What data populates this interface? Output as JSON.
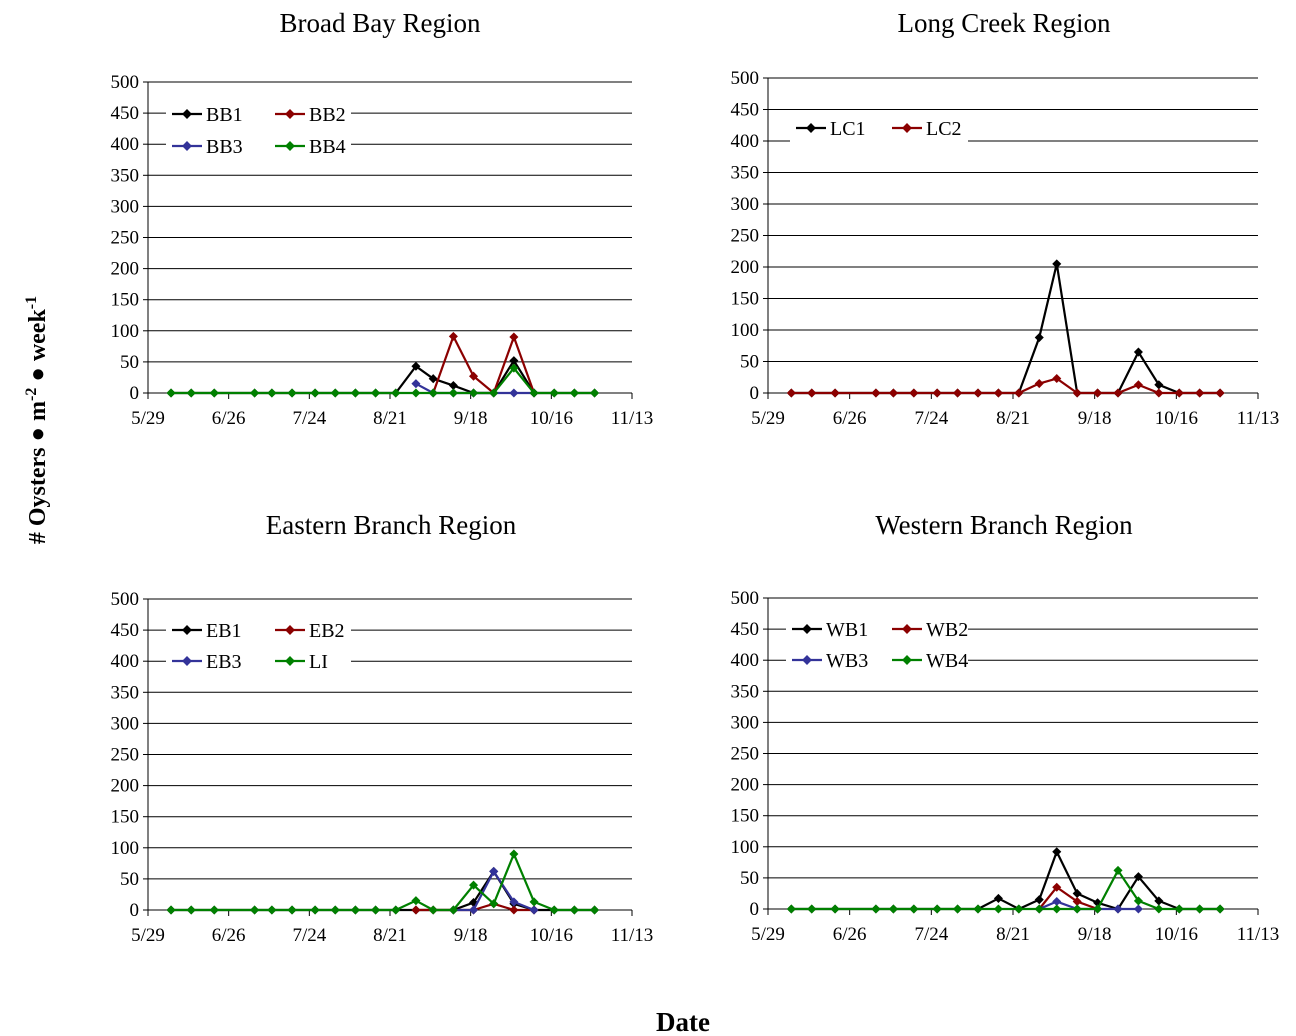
{
  "figure": {
    "ylabel": "# Oysters ● m⁻² ● week⁻¹",
    "xlabel": "Date"
  },
  "chart_data": [
    {
      "type": "line",
      "title": "Broad Bay Region",
      "x_ticks": [
        "5/29",
        "6/26",
        "7/24",
        "8/21",
        "9/18",
        "10/16",
        "11/13"
      ],
      "y_ticks": [
        0,
        50,
        100,
        150,
        200,
        250,
        300,
        350,
        400,
        450,
        500
      ],
      "ylim": [
        0,
        500
      ],
      "grid": "horizontal",
      "legend_position": "top-left",
      "series": [
        {
          "name": "BB1",
          "color": "#000000",
          "x": [
            "6/6",
            "6/13",
            "6/21",
            "7/5",
            "7/11",
            "7/18",
            "7/26",
            "8/2",
            "8/9",
            "8/16",
            "8/23",
            "8/30",
            "9/5",
            "9/12",
            "9/19",
            "9/26",
            "10/3",
            "10/10",
            "10/17",
            "10/24",
            "10/31"
          ],
          "values": [
            0,
            0,
            0,
            0,
            0,
            0,
            0,
            0,
            0,
            0,
            0,
            43,
            23,
            12,
            0,
            0,
            52,
            0,
            0,
            0,
            0
          ]
        },
        {
          "name": "BB2",
          "color": "#8b0000",
          "x": [
            "9/5",
            "9/12",
            "9/19",
            "9/26",
            "10/3",
            "10/10"
          ],
          "values": [
            0,
            91,
            27,
            0,
            90,
            0
          ]
        },
        {
          "name": "BB3",
          "color": "#333399",
          "x": [
            "8/30",
            "9/5",
            "9/12",
            "9/19",
            "9/26",
            "10/3",
            "10/10"
          ],
          "values": [
            15,
            0,
            0,
            0,
            0,
            0,
            0
          ]
        },
        {
          "name": "BB4",
          "color": "#008000",
          "x": [
            "6/6",
            "6/13",
            "6/21",
            "7/5",
            "7/11",
            "7/18",
            "7/26",
            "8/2",
            "8/9",
            "8/16",
            "8/23",
            "8/30",
            "9/5",
            "9/12",
            "9/19",
            "9/26",
            "10/3",
            "10/10",
            "10/17",
            "10/24",
            "10/31"
          ],
          "values": [
            0,
            0,
            0,
            0,
            0,
            0,
            0,
            0,
            0,
            0,
            0,
            0,
            0,
            0,
            0,
            0,
            40,
            0,
            0,
            0,
            0
          ]
        }
      ]
    },
    {
      "type": "line",
      "title": "Long Creek Region",
      "x_ticks": [
        "5/29",
        "6/26",
        "7/24",
        "8/21",
        "9/18",
        "10/16",
        "11/13"
      ],
      "y_ticks": [
        0,
        50,
        100,
        150,
        200,
        250,
        300,
        350,
        400,
        450,
        500
      ],
      "ylim": [
        0,
        500
      ],
      "grid": "horizontal",
      "legend_position": "top-left",
      "series": [
        {
          "name": "LC1",
          "color": "#000000",
          "x": [
            "6/6",
            "6/13",
            "6/21",
            "7/5",
            "7/11",
            "7/18",
            "7/26",
            "8/2",
            "8/9",
            "8/16",
            "8/23",
            "8/30",
            "9/5",
            "9/12",
            "9/19",
            "9/26",
            "10/3",
            "10/10",
            "10/17",
            "10/24",
            "10/31"
          ],
          "values": [
            0,
            0,
            0,
            0,
            0,
            0,
            0,
            0,
            0,
            0,
            0,
            88,
            205,
            0,
            0,
            0,
            65,
            13,
            0,
            0,
            0
          ]
        },
        {
          "name": "LC2",
          "color": "#8b0000",
          "x": [
            "6/6",
            "6/13",
            "6/21",
            "7/5",
            "7/11",
            "7/18",
            "7/26",
            "8/2",
            "8/9",
            "8/16",
            "8/23",
            "8/30",
            "9/5",
            "9/12",
            "9/19",
            "9/26",
            "10/3",
            "10/10",
            "10/17",
            "10/24",
            "10/31"
          ],
          "values": [
            0,
            0,
            0,
            0,
            0,
            0,
            0,
            0,
            0,
            0,
            0,
            15,
            23,
            0,
            0,
            0,
            13,
            0,
            0,
            0,
            0
          ]
        }
      ]
    },
    {
      "type": "line",
      "title": "Eastern Branch Region",
      "x_ticks": [
        "5/29",
        "6/26",
        "7/24",
        "8/21",
        "9/18",
        "10/16",
        "11/13"
      ],
      "y_ticks": [
        0,
        50,
        100,
        150,
        200,
        250,
        300,
        350,
        400,
        450,
        500
      ],
      "ylim": [
        0,
        500
      ],
      "grid": "horizontal",
      "legend_position": "top-left",
      "series": [
        {
          "name": "EB1",
          "color": "#000000",
          "x": [
            "6/6",
            "6/13",
            "6/21",
            "7/5",
            "7/11",
            "7/18",
            "7/26",
            "8/2",
            "8/9",
            "8/16",
            "8/23",
            "8/30",
            "9/5",
            "9/12",
            "9/19",
            "9/26",
            "10/3",
            "10/10",
            "10/17",
            "10/24",
            "10/31"
          ],
          "values": [
            0,
            0,
            0,
            0,
            0,
            0,
            0,
            0,
            0,
            0,
            0,
            0,
            0,
            0,
            12,
            62,
            10,
            0,
            0,
            0,
            0
          ]
        },
        {
          "name": "EB2",
          "color": "#8b0000",
          "x": [
            "8/30",
            "9/5",
            "9/12",
            "9/19",
            "9/26",
            "10/3",
            "10/10"
          ],
          "values": [
            0,
            0,
            0,
            0,
            10,
            0,
            0
          ]
        },
        {
          "name": "EB3",
          "color": "#333399",
          "x": [
            "9/12",
            "9/19",
            "9/26",
            "10/3",
            "10/10"
          ],
          "values": [
            0,
            0,
            62,
            13,
            0
          ]
        },
        {
          "name": "LI",
          "color": "#008000",
          "x": [
            "6/6",
            "6/13",
            "6/21",
            "7/5",
            "7/11",
            "7/18",
            "7/26",
            "8/2",
            "8/9",
            "8/16",
            "8/23",
            "8/30",
            "9/5",
            "9/12",
            "9/19",
            "9/26",
            "10/3",
            "10/10",
            "10/17",
            "10/24",
            "10/31"
          ],
          "values": [
            0,
            0,
            0,
            0,
            0,
            0,
            0,
            0,
            0,
            0,
            0,
            15,
            0,
            0,
            40,
            10,
            90,
            13,
            0,
            0,
            0
          ]
        }
      ]
    },
    {
      "type": "line",
      "title": "Western Branch Region",
      "x_ticks": [
        "5/29",
        "6/26",
        "7/24",
        "8/21",
        "9/18",
        "10/16",
        "11/13"
      ],
      "y_ticks": [
        0,
        50,
        100,
        150,
        200,
        250,
        300,
        350,
        400,
        450,
        500
      ],
      "ylim": [
        0,
        500
      ],
      "grid": "horizontal",
      "legend_position": "top-left",
      "series": [
        {
          "name": "WB1",
          "color": "#000000",
          "x": [
            "6/6",
            "6/13",
            "6/21",
            "7/5",
            "7/11",
            "7/18",
            "7/26",
            "8/2",
            "8/9",
            "8/16",
            "8/23",
            "8/30",
            "9/5",
            "9/12",
            "9/19",
            "9/26",
            "10/3",
            "10/10",
            "10/17",
            "10/24",
            "10/31"
          ],
          "values": [
            0,
            0,
            0,
            0,
            0,
            0,
            0,
            0,
            0,
            17,
            0,
            15,
            92,
            25,
            10,
            0,
            52,
            13,
            0,
            0,
            0
          ]
        },
        {
          "name": "WB2",
          "color": "#8b0000",
          "x": [
            "8/30",
            "9/5",
            "9/12",
            "9/19"
          ],
          "values": [
            0,
            35,
            12,
            0
          ]
        },
        {
          "name": "WB3",
          "color": "#333399",
          "x": [
            "8/30",
            "9/5",
            "9/12",
            "9/19",
            "9/26",
            "10/3"
          ],
          "values": [
            0,
            12,
            0,
            0,
            0,
            0
          ]
        },
        {
          "name": "WB4",
          "color": "#008000",
          "x": [
            "6/6",
            "6/13",
            "6/21",
            "7/5",
            "7/11",
            "7/18",
            "7/26",
            "8/2",
            "8/9",
            "8/16",
            "8/23",
            "8/30",
            "9/5",
            "9/12",
            "9/19",
            "9/26",
            "10/3",
            "10/10",
            "10/17",
            "10/24",
            "10/31"
          ],
          "values": [
            0,
            0,
            0,
            0,
            0,
            0,
            0,
            0,
            0,
            0,
            0,
            0,
            0,
            0,
            0,
            62,
            13,
            0,
            0,
            0,
            0
          ]
        }
      ]
    }
  ]
}
